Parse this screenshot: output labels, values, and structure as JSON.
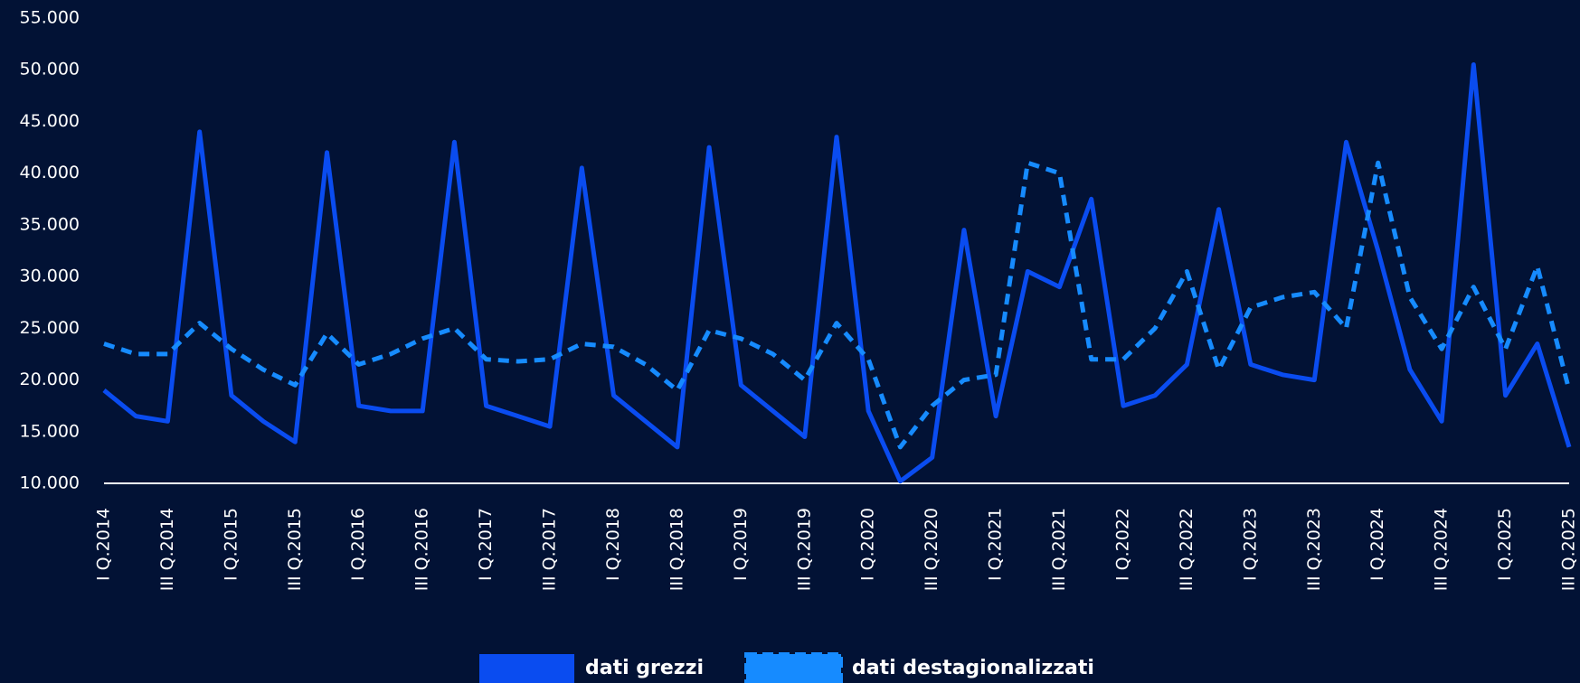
{
  "chart_data": {
    "type": "line",
    "categories": [
      "I Q.2014",
      null,
      "III Q.2014",
      null,
      "I Q.2015",
      null,
      "III Q.2015",
      null,
      "I Q.2016",
      null,
      "III Q.2016",
      null,
      "I Q.2017",
      null,
      "III Q.2017",
      null,
      "I Q.2018",
      null,
      "III Q.2018",
      null,
      "I Q.2019",
      null,
      "III Q.2019",
      null,
      "I Q.2020",
      null,
      "III Q.2020",
      null,
      "I Q.2021",
      null,
      "III Q.2021",
      null,
      "I Q.2022",
      null,
      "III Q.2022",
      null,
      "I Q.2023",
      null,
      "III Q.2023",
      null,
      "I Q.2024",
      null,
      "III Q.2024",
      null,
      "I Q.2025",
      null,
      "III Q.2025"
    ],
    "series": [
      {
        "name": "dati grezzi",
        "color": "#0a4cf0",
        "dashed": false,
        "values": [
          19000,
          16500,
          16000,
          44000,
          18500,
          16000,
          14000,
          42000,
          17500,
          17000,
          17000,
          43000,
          17500,
          16500,
          15500,
          40500,
          18500,
          16000,
          13500,
          42500,
          19500,
          17000,
          14500,
          43500,
          17000,
          10200,
          12500,
          34500,
          16500,
          30500,
          29000,
          37500,
          17500,
          18500,
          21500,
          36500,
          21500,
          20500,
          20000,
          43000,
          32500,
          21000,
          16000,
          50500,
          18500,
          23500,
          13500
        ]
      },
      {
        "name": "dati destagionalizzati",
        "color": "#168bff",
        "dashed": true,
        "values": [
          23500,
          22500,
          22500,
          25500,
          23000,
          21000,
          19500,
          24500,
          21500,
          22500,
          24000,
          25000,
          22000,
          21800,
          22000,
          23500,
          23200,
          21500,
          19000,
          24800,
          24000,
          22500,
          20000,
          25500,
          22000,
          13500,
          17500,
          20000,
          20500,
          41000,
          40000,
          22000,
          22000,
          25000,
          30500,
          21000,
          27000,
          28000,
          28500,
          25000,
          41000,
          28000,
          23000,
          29000,
          23000,
          31000,
          19000
        ]
      }
    ],
    "ylim": [
      10000,
      55000
    ],
    "yticks": [
      {
        "value": 10000,
        "label": "10.000"
      },
      {
        "value": 15000,
        "label": "15.000"
      },
      {
        "value": 20000,
        "label": "20.000"
      },
      {
        "value": 25000,
        "label": "25.000"
      },
      {
        "value": 30000,
        "label": "30.000"
      },
      {
        "value": 35000,
        "label": "35.000"
      },
      {
        "value": 40000,
        "label": "40.000"
      },
      {
        "value": 45000,
        "label": "45.000"
      },
      {
        "value": 50000,
        "label": "50.000"
      },
      {
        "value": 55000,
        "label": "55.000"
      }
    ],
    "grid": false
  }
}
